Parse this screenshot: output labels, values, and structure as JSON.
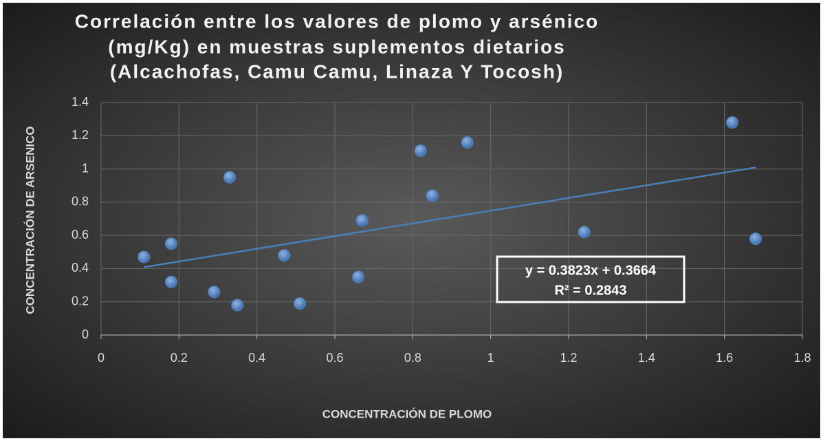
{
  "chart_data": {
    "type": "scatter",
    "title": [
      "Correlación entre los valores de plomo y arsénico",
      "(mg/Kg) en muestras suplementos dietarios",
      "(Alcachofas, Camu Camu, Linaza Y Tocosh)"
    ],
    "x_label": "CONCENTRACIÓN DE PLOMO",
    "y_label": "CONCENTRACIÓN DE ARSENICO",
    "x": [
      0.11,
      0.18,
      0.18,
      0.29,
      0.33,
      0.35,
      0.47,
      0.51,
      0.66,
      0.67,
      0.82,
      0.85,
      0.94,
      1.24,
      1.62,
      1.68
    ],
    "values": [
      0.47,
      0.55,
      0.32,
      0.26,
      0.95,
      0.18,
      0.48,
      0.19,
      0.35,
      0.69,
      1.11,
      0.84,
      1.16,
      0.62,
      1.28,
      0.58
    ],
    "color": "#4f81bd",
    "xlim": [
      0,
      1.8
    ],
    "ylim": [
      0,
      1.4
    ],
    "xticks": [
      0,
      0.2,
      0.4,
      0.6,
      0.8,
      1,
      1.2,
      1.4,
      1.6,
      1.8
    ],
    "yticks": [
      0,
      0.2,
      0.4,
      0.6,
      0.8,
      1,
      1.2,
      1.4
    ],
    "grid": true,
    "trendline": {
      "slope": 0.3823,
      "intercept": 0.3664,
      "color": "#4a7ebb",
      "equation": "y = 0.3823x + 0.3664",
      "r2": "R² = 0.2843"
    }
  }
}
